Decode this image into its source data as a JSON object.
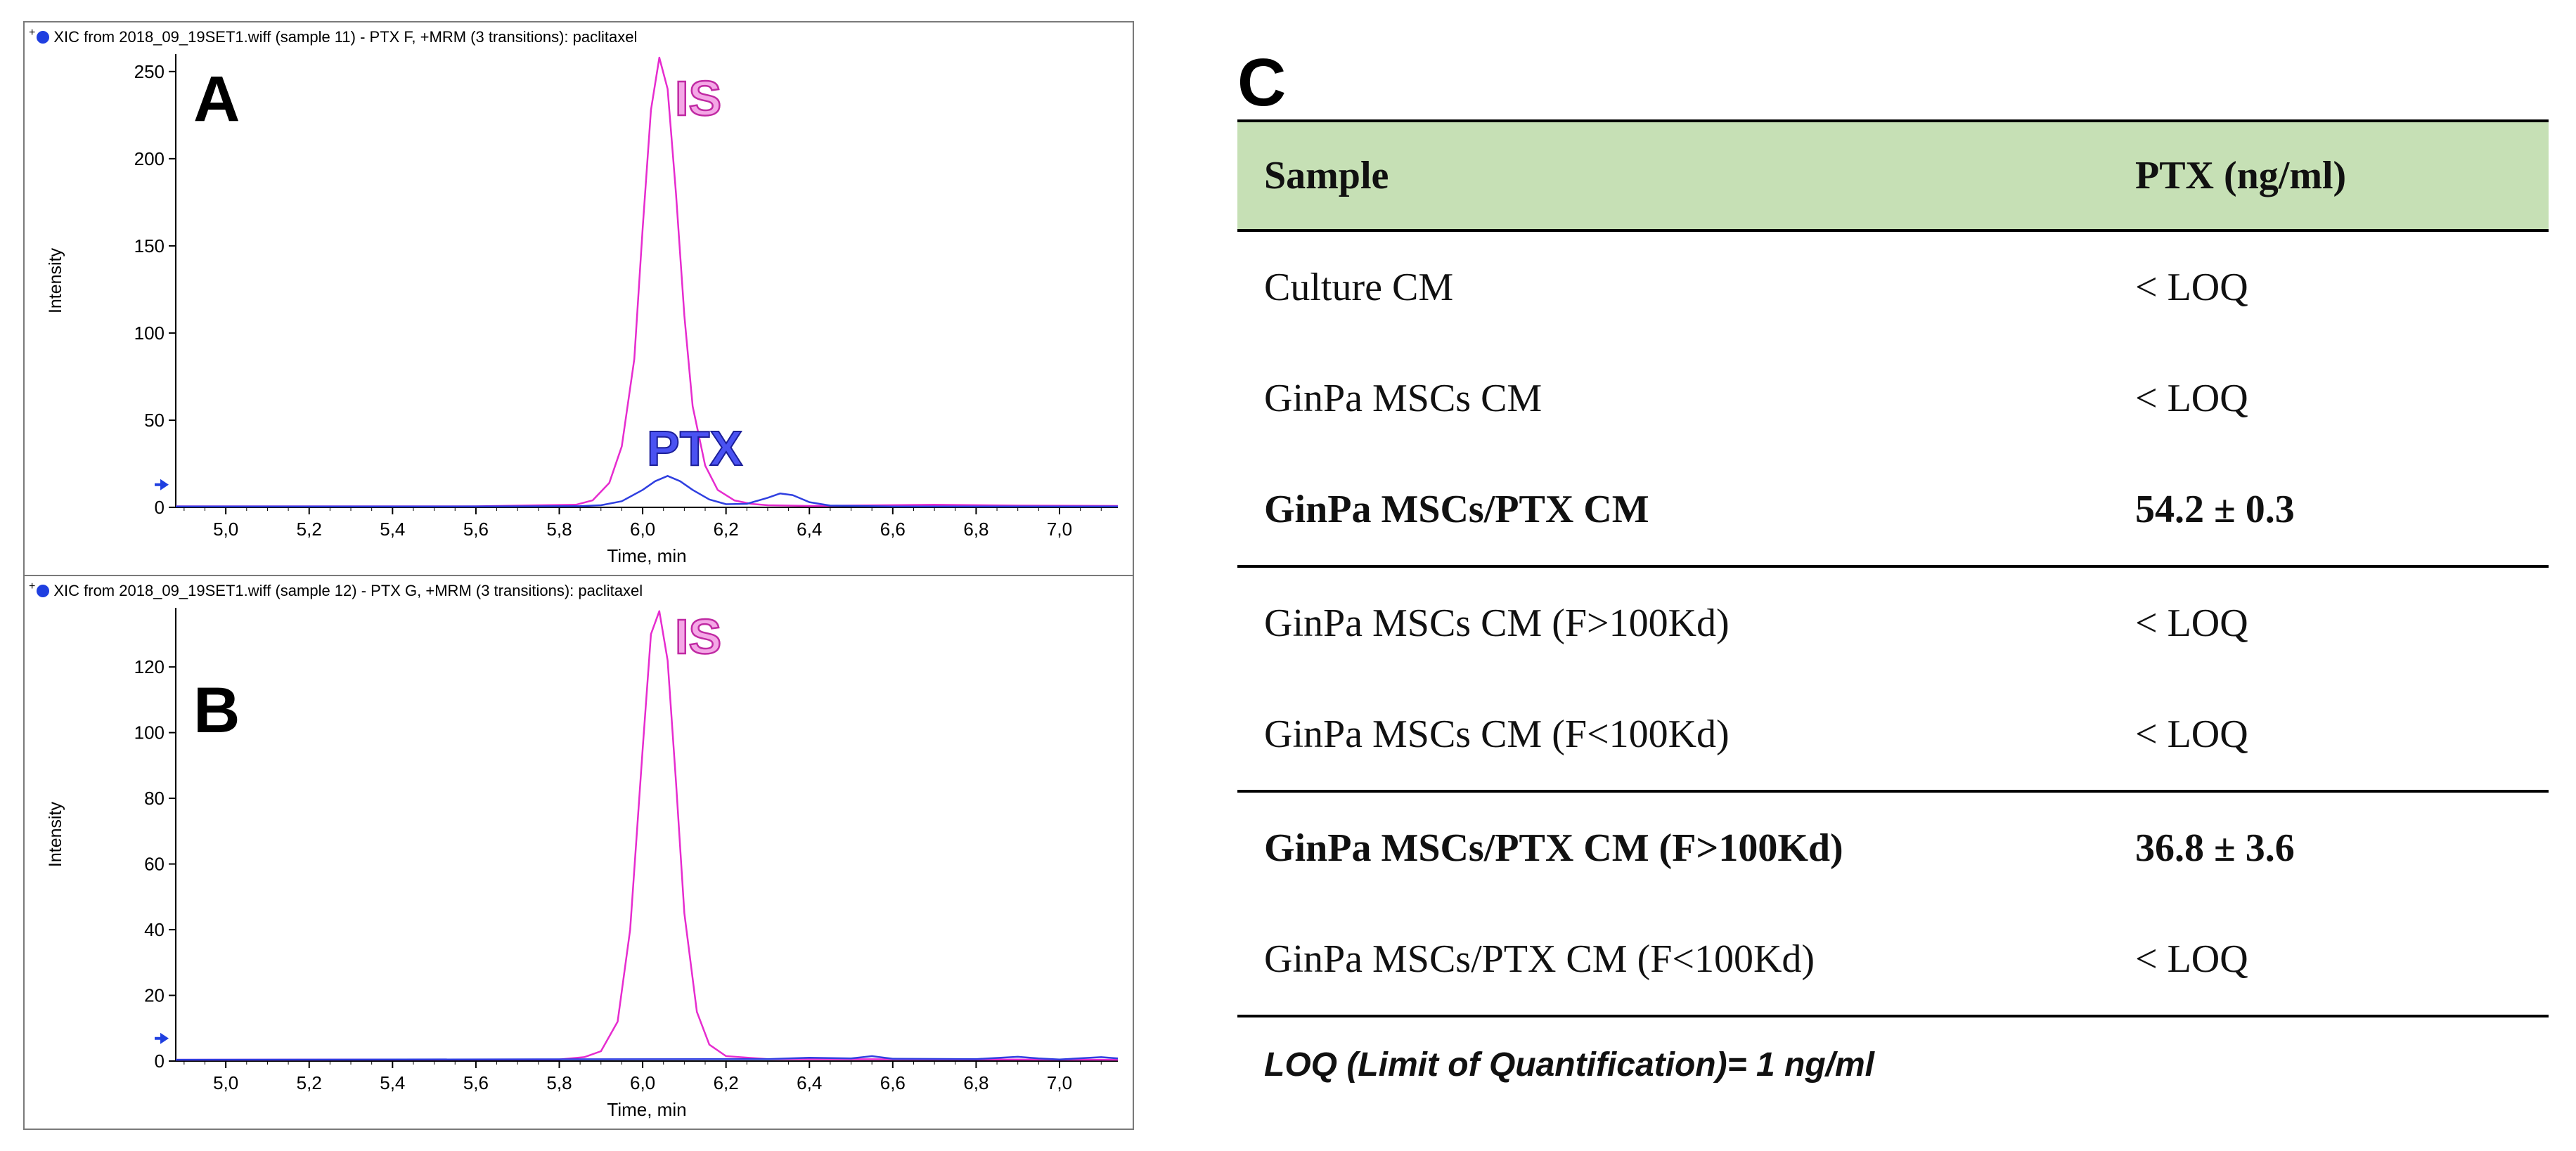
{
  "chart_data": [
    {
      "type": "line",
      "panel_label": "A",
      "title": "XIC from 2018_09_19SET1.wiff (sample 11) - PTX F, +MRM (3 transitions): paclitaxel",
      "xlabel": "Time, min",
      "ylabel": "Intensity",
      "xlim": [
        4.88,
        7.14
      ],
      "ylim": [
        0,
        260
      ],
      "x_ticks": [
        5.0,
        5.2,
        5.4,
        5.6,
        5.8,
        6.0,
        6.2,
        6.4,
        6.6,
        6.8,
        7.0
      ],
      "x_tick_labels": [
        "5,0",
        "5,2",
        "5,4",
        "5,6",
        "5,8",
        "6,0",
        "6,2",
        "6,4",
        "6,6",
        "6,8",
        "7,0"
      ],
      "y_ticks": [
        0,
        50,
        100,
        150,
        200,
        250
      ],
      "y_tick_labels": [
        "0",
        "50",
        "100",
        "150",
        "200",
        "250"
      ],
      "series": [
        {
          "name": "IS",
          "color": "#e62ccf",
          "x": [
            4.88,
            5.6,
            5.84,
            5.88,
            5.92,
            5.95,
            5.98,
            6.0,
            6.02,
            6.04,
            6.06,
            6.08,
            6.1,
            6.12,
            6.15,
            6.18,
            6.22,
            6.26,
            6.3,
            6.4,
            6.7,
            6.9,
            7.14
          ],
          "y": [
            0.6,
            0.6,
            1.5,
            4,
            14,
            35,
            85,
            160,
            228,
            258,
            240,
            180,
            110,
            58,
            24,
            10,
            4,
            2,
            1.2,
            0.8,
            1.5,
            1,
            0.8
          ]
        },
        {
          "name": "PTX",
          "color": "#2f3fe0",
          "x": [
            4.88,
            5.5,
            5.85,
            5.9,
            5.95,
            6.0,
            6.03,
            6.06,
            6.09,
            6.12,
            6.16,
            6.2,
            6.25,
            6.3,
            6.33,
            6.36,
            6.4,
            6.45,
            6.6,
            7.14
          ],
          "y": [
            0.5,
            0.5,
            0.7,
            1.2,
            3.5,
            10,
            15,
            18,
            15,
            10,
            4.5,
            1.8,
            2,
            5.5,
            8,
            7,
            3,
            1,
            0.5,
            0.5
          ]
        }
      ],
      "annotations": [
        "IS",
        "PTX"
      ]
    },
    {
      "type": "line",
      "panel_label": "B",
      "title": "XIC from 2018_09_19SET1.wiff (sample 12) - PTX G, +MRM (3 transitions): paclitaxel",
      "xlabel": "Time, min",
      "ylabel": "Intensity",
      "xlim": [
        4.88,
        7.14
      ],
      "ylim": [
        0,
        138
      ],
      "x_ticks": [
        5.0,
        5.2,
        5.4,
        5.6,
        5.8,
        6.0,
        6.2,
        6.4,
        6.6,
        6.8,
        7.0
      ],
      "x_tick_labels": [
        "5,0",
        "5,2",
        "5,4",
        "5,6",
        "5,8",
        "6,0",
        "6,2",
        "6,4",
        "6,6",
        "6,8",
        "7,0"
      ],
      "y_ticks": [
        0,
        20,
        40,
        60,
        80,
        100,
        120
      ],
      "y_tick_labels": [
        "0",
        "20",
        "40",
        "60",
        "80",
        "100",
        "120"
      ],
      "series": [
        {
          "name": "IS",
          "color": "#e62ccf",
          "x": [
            4.88,
            5.8,
            5.86,
            5.9,
            5.94,
            5.97,
            6.0,
            6.02,
            6.04,
            6.06,
            6.08,
            6.1,
            6.13,
            6.16,
            6.2,
            6.3,
            7.14
          ],
          "y": [
            0.4,
            0.5,
            1.2,
            3,
            12,
            40,
            95,
            130,
            137,
            122,
            85,
            45,
            15,
            5,
            1.5,
            0.6,
            0.4
          ]
        },
        {
          "name": "PTX",
          "color": "#2f3fe0",
          "x": [
            4.88,
            6.3,
            6.4,
            6.5,
            6.55,
            6.6,
            6.8,
            6.9,
            6.95,
            7.0,
            7.1,
            7.14
          ],
          "y": [
            0.4,
            0.6,
            1,
            0.8,
            1.5,
            0.7,
            0.6,
            1.3,
            0.8,
            0.5,
            1.2,
            0.8
          ]
        }
      ],
      "annotations": [
        "IS"
      ]
    }
  ],
  "table": {
    "panel_label": "C",
    "headers": [
      "Sample",
      "PTX (ng/ml)"
    ],
    "rows": [
      {
        "sample": "Culture CM",
        "ptx": "< LOQ"
      },
      {
        "sample": "GinPa MSCs CM",
        "ptx": "< LOQ"
      },
      {
        "sample": "GinPa MSCs/PTX CM",
        "ptx": "54.2 ± 0.3"
      },
      {
        "sample": "GinPa MSCs CM (F>100Kd)",
        "ptx": "< LOQ"
      },
      {
        "sample": "GinPa MSCs CM (F<100Kd)",
        "ptx": "< LOQ"
      },
      {
        "sample": "GinPa MSCs/PTX CM (F>100Kd)",
        "ptx": "36.8 ± 3.6"
      },
      {
        "sample": "GinPa MSCs/PTX CM (F<100Kd)",
        "ptx": "< LOQ"
      }
    ],
    "footnote": "LOQ (Limit of Quantification)= 1 ng/ml"
  }
}
